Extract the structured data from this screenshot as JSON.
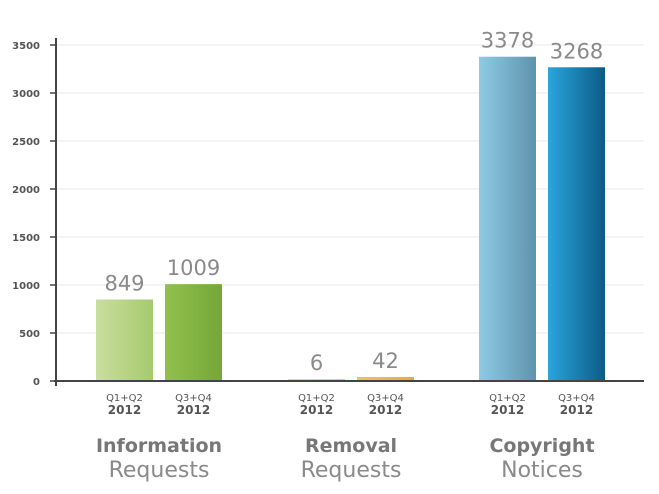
{
  "chart_data": {
    "type": "bar",
    "ylim": [
      0,
      3500
    ],
    "yticks": [
      "3500",
      "3000",
      "2500",
      "2000",
      "1500",
      "1000",
      "500",
      "0"
    ],
    "grid": true,
    "groups": [
      {
        "title_bold": "Information",
        "title_light": "Requests",
        "bars": [
          {
            "period": "Q1+Q2",
            "year": "2012",
            "value": 849,
            "value_label": "849",
            "color_from": "#c8de9e",
            "color_to": "#a6ca6e"
          },
          {
            "period": "Q3+Q4",
            "year": "2012",
            "value": 1009,
            "value_label": "1009",
            "color_from": "#92c04e",
            "color_to": "#74a738"
          }
        ]
      },
      {
        "title_bold": "Removal",
        "title_light": "Requests",
        "bars": [
          {
            "period": "Q1+Q2",
            "year": "2012",
            "value": 6,
            "value_label": "6",
            "color_from": "#f5d49a",
            "color_to": "#f0c57c"
          },
          {
            "period": "Q3+Q4",
            "year": "2012",
            "value": 42,
            "value_label": "42",
            "color_from": "#f2c062",
            "color_to": "#e9a93e"
          }
        ]
      },
      {
        "title_bold": "Copyright",
        "title_light": "Notices",
        "bars": [
          {
            "period": "Q1+Q2",
            "year": "2012",
            "value": 3378,
            "value_label": "3378",
            "color_from": "#8dcbe6",
            "color_to": "#5f93ac"
          },
          {
            "period": "Q3+Q4",
            "year": "2012",
            "value": 3268,
            "value_label": "3268",
            "color_from": "#2aa5dc",
            "color_to": "#0c5b86"
          }
        ]
      }
    ]
  }
}
